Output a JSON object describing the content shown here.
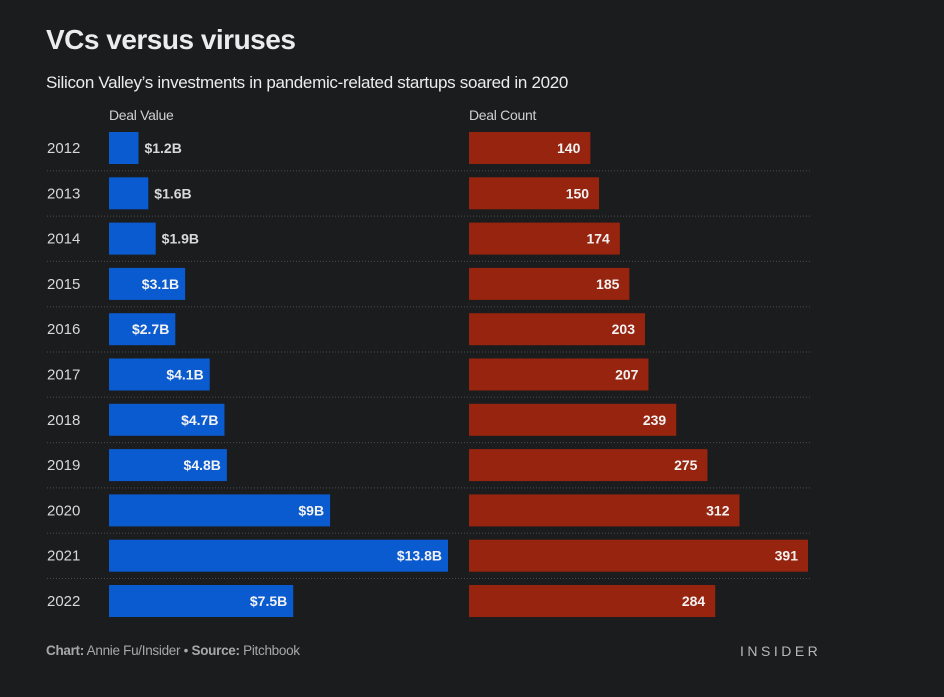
{
  "chart_data": {
    "type": "bar",
    "title": "VCs versus viruses",
    "subtitle": "Silicon Valley’s investments in pandemic-related startups soared in 2020",
    "categories": [
      "2012",
      "2013",
      "2014",
      "2015",
      "2016",
      "2017",
      "2018",
      "2019",
      "2020",
      "2021",
      "2022"
    ],
    "series": [
      {
        "name": "Deal Value",
        "unit": "$B",
        "color": "#0a5ad0",
        "values": [
          1.2,
          1.6,
          1.9,
          3.1,
          2.7,
          4.1,
          4.7,
          4.8,
          9,
          13.8,
          7.5
        ],
        "labels": [
          "$1.2B",
          "$1.6B",
          "$1.9B",
          "$3.1B",
          "$2.7B",
          "$4.1B",
          "$4.7B",
          "$4.8B",
          "$9B",
          "$13.8B",
          "$7.5B"
        ]
      },
      {
        "name": "Deal Count",
        "color": "#97240e",
        "values": [
          140,
          150,
          174,
          185,
          203,
          207,
          239,
          275,
          312,
          391,
          284
        ],
        "labels": [
          "140",
          "150",
          "174",
          "185",
          "203",
          "207",
          "239",
          "275",
          "312",
          "391",
          "284"
        ]
      }
    ],
    "grid": false
  },
  "footer": {
    "chart_label": "Chart:",
    "chart_credit": "Annie Fu/Insider",
    "separator": "•",
    "source_label": "Source:",
    "source": "Pitchbook",
    "brand": "INSIDER"
  }
}
